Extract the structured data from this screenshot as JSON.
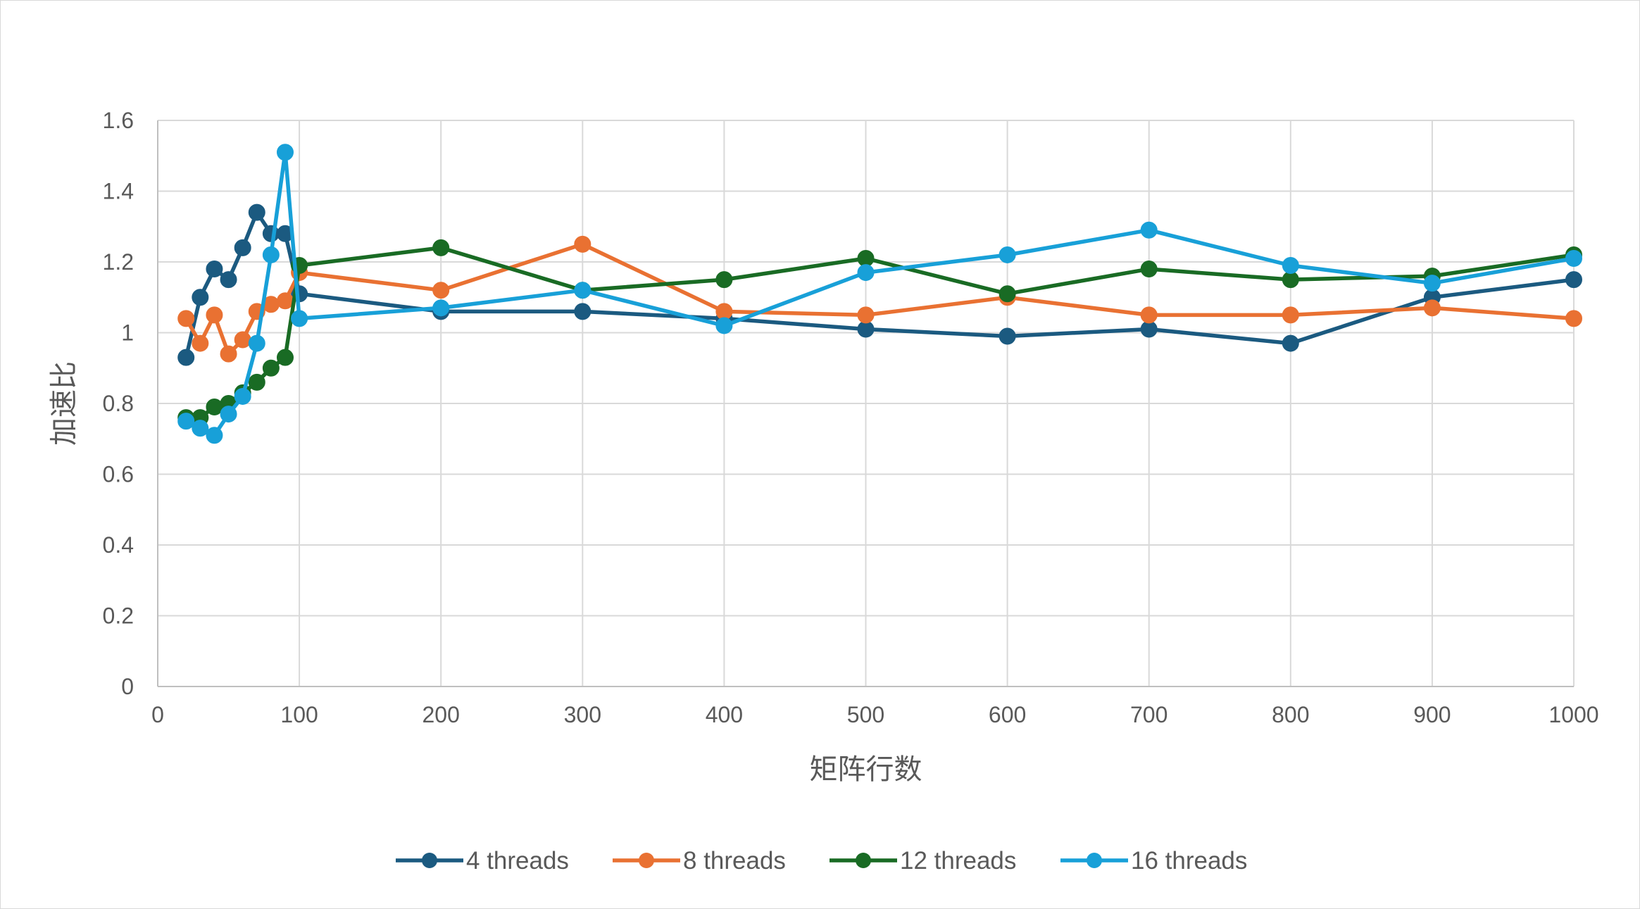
{
  "chart_data": {
    "type": "line",
    "title": "",
    "xlabel": "矩阵行数",
    "ylabel": "加速比",
    "xlim": [
      0,
      1000
    ],
    "ylim": [
      0,
      1.6
    ],
    "x_ticks": [
      0,
      100,
      200,
      300,
      400,
      500,
      600,
      700,
      800,
      900,
      1000
    ],
    "y_ticks": [
      0,
      0.2,
      0.4,
      0.6,
      0.8,
      1,
      1.2,
      1.4,
      1.6
    ],
    "x_tick_labels": [
      "0",
      "100",
      "200",
      "300",
      "400",
      "500",
      "600",
      "700",
      "800",
      "900",
      "1000"
    ],
    "y_tick_labels": [
      "0",
      "0.2",
      "0.4",
      "0.6",
      "0.8",
      "1",
      "1.2",
      "1.4",
      "1.6"
    ],
    "grid": true,
    "legend_position": "bottom",
    "x": [
      20,
      30,
      40,
      50,
      60,
      70,
      80,
      90,
      100,
      200,
      300,
      400,
      500,
      600,
      700,
      800,
      900,
      1000
    ],
    "series": [
      {
        "name": "4 threads",
        "color": "#1b5a80",
        "values": [
          0.93,
          1.1,
          1.18,
          1.15,
          1.24,
          1.34,
          1.28,
          1.28,
          1.11,
          1.06,
          1.06,
          1.04,
          1.01,
          0.99,
          1.01,
          0.97,
          1.1,
          1.15
        ]
      },
      {
        "name": "8 threads",
        "color": "#e97132",
        "values": [
          1.04,
          0.97,
          1.05,
          0.94,
          0.98,
          1.06,
          1.08,
          1.09,
          1.17,
          1.12,
          1.25,
          1.06,
          1.05,
          1.1,
          1.05,
          1.05,
          1.07,
          1.04
        ]
      },
      {
        "name": "12 threads",
        "color": "#196b24",
        "values": [
          0.76,
          0.76,
          0.79,
          0.8,
          0.83,
          0.86,
          0.9,
          0.93,
          1.19,
          1.24,
          1.12,
          1.15,
          1.21,
          1.11,
          1.18,
          1.15,
          1.16,
          1.22
        ]
      },
      {
        "name": "16 threads",
        "color": "#18a0d8",
        "values": [
          0.75,
          0.73,
          0.71,
          0.77,
          0.82,
          0.97,
          1.22,
          1.51,
          1.04,
          1.07,
          1.12,
          1.02,
          1.17,
          1.22,
          1.29,
          1.19,
          1.14,
          1.21
        ]
      }
    ]
  }
}
